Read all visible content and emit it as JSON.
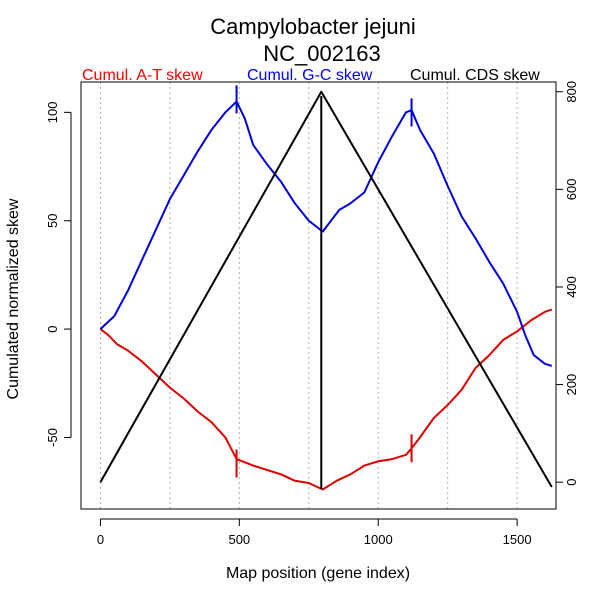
{
  "chart_data": {
    "type": "line",
    "title": "Campylobacter jejuni",
    "subtitle": "NC_002163",
    "xlabel": "Map position (gene index)",
    "ylabel": "Cumulated normalized skew",
    "xlim": [
      -70,
      1640
    ],
    "ylim": [
      -83,
      114
    ],
    "x_ticks": [
      0,
      500,
      1000,
      1500
    ],
    "y_ticks": [
      -50,
      0,
      50,
      100
    ],
    "y2lim": [
      -55,
      820
    ],
    "y2_ticks": [
      0,
      200,
      400,
      600,
      800
    ],
    "grid_x": [
      0,
      250,
      500,
      750,
      1000,
      1250,
      1500
    ],
    "legend": [
      {
        "label": "Cumul. A-T skew",
        "color": "#ff0000"
      },
      {
        "label": "Cumul. G-C skew",
        "color": "#0000ff"
      },
      {
        "label": "Cumul. CDS skew",
        "color": "#000000"
      }
    ],
    "series": [
      {
        "name": "Cumul. A-T skew",
        "color": "#dd0000",
        "axis": "left",
        "x": [
          0,
          30,
          60,
          100,
          150,
          200,
          250,
          300,
          350,
          400,
          450,
          490,
          550,
          600,
          650,
          700,
          750,
          800,
          850,
          900,
          950,
          1000,
          1050,
          1100,
          1120,
          1150,
          1200,
          1250,
          1300,
          1350,
          1400,
          1450,
          1500,
          1550,
          1600,
          1625
        ],
        "y": [
          0,
          -3,
          -7,
          -10,
          -15,
          -21,
          -27,
          -32,
          -38,
          -43,
          -50,
          -60,
          -63,
          -65,
          -67,
          -70,
          -71,
          -74,
          -70,
          -67,
          -63,
          -61,
          -60,
          -58,
          -55,
          -50,
          -41,
          -35,
          -28,
          -18,
          -12,
          -5,
          -1,
          4,
          8,
          9
        ]
      },
      {
        "name": "Cumul. G-C skew",
        "color": "#0000dd",
        "axis": "left",
        "x": [
          0,
          50,
          100,
          150,
          200,
          250,
          300,
          350,
          400,
          450,
          490,
          520,
          550,
          600,
          650,
          700,
          750,
          790,
          800,
          830,
          860,
          900,
          950,
          1000,
          1050,
          1100,
          1120,
          1150,
          1200,
          1250,
          1300,
          1350,
          1400,
          1450,
          1500,
          1530,
          1560,
          1600,
          1625
        ],
        "y": [
          0,
          6,
          18,
          32,
          46,
          60,
          71,
          82,
          92,
          100,
          105,
          97,
          85,
          76,
          68,
          58,
          50,
          46,
          45,
          50,
          55,
          58,
          63,
          77,
          89,
          100,
          101,
          92,
          81,
          66,
          52,
          42,
          31,
          21,
          8,
          -3,
          -12,
          -16,
          -17
        ]
      },
      {
        "name": "Cumul. CDS skew",
        "color": "#000000",
        "axis": "right",
        "x": [
          0,
          795,
          1625
        ],
        "y": [
          0,
          800,
          -10
        ]
      }
    ],
    "markers": [
      {
        "series": "Cumul. A-T skew",
        "x": 490,
        "y": -62,
        "color": "#dd0000"
      },
      {
        "series": "Cumul. A-T skew",
        "x": 1120,
        "y": -55,
        "color": "#dd0000"
      },
      {
        "series": "Cumul. G-C skew",
        "x": 490,
        "y": 106,
        "color": "#0000dd"
      },
      {
        "series": "Cumul. G-C skew",
        "x": 1120,
        "y": 100,
        "color": "#0000dd"
      }
    ],
    "vline": {
      "x": 795,
      "color": "#000000"
    }
  }
}
